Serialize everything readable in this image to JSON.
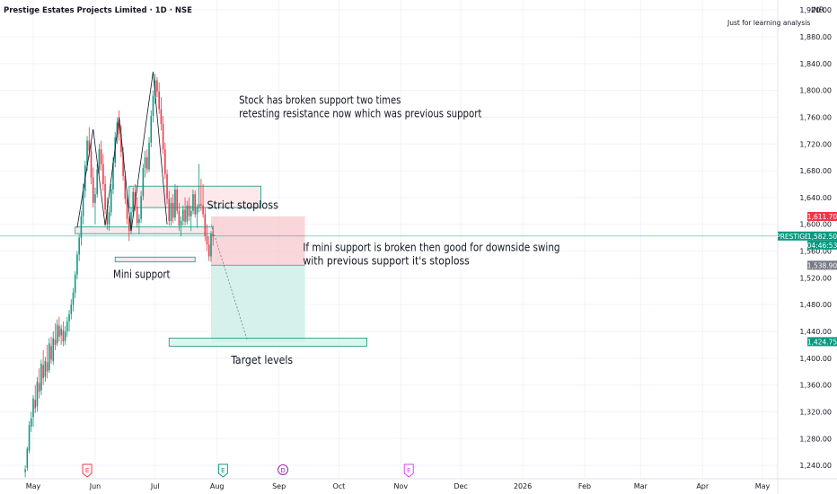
{
  "header": {
    "title": "Prestige Estates Projects Limited · 1D · NSE",
    "currency": "INR",
    "note": "Just for learning analysis"
  },
  "colors": {
    "up": "#089981",
    "down": "#f23645",
    "grid": "#f0f3fa",
    "axis_text": "#131722",
    "zone_red": "#f7c8cc",
    "zone_green": "#cfeee7"
  },
  "chart_data": {
    "type": "candlestick",
    "symbol": "PRESTIGE",
    "timeframe": "1D",
    "ylim": [
      1220,
      1935
    ],
    "y_ticks": [
      1240,
      1280,
      1320,
      1360,
      1400,
      1440,
      1480,
      1520,
      1560,
      1600,
      1640,
      1680,
      1720,
      1760,
      1800,
      1840,
      1880,
      1920
    ],
    "y_tick_labels": [
      "1,240.00",
      "1,280.00",
      "1,320.00",
      "1,360.00",
      "1,400.00",
      "1,440.00",
      "1,480.00",
      "1,520.00",
      "1,560.00",
      "1,600.00",
      "1,640.00",
      "1,680.00",
      "1,720.00",
      "1,760.00",
      "1,800.00",
      "1,840.00",
      "1,880.00",
      "1,920.00"
    ],
    "x_ticks": [
      {
        "label": "May",
        "day": 0
      },
      {
        "label": "Jun",
        "day": 31
      },
      {
        "label": "Jul",
        "day": 61
      },
      {
        "label": "Aug",
        "day": 92
      },
      {
        "label": "Sep",
        "day": 123
      },
      {
        "label": "Oct",
        "day": 153
      },
      {
        "label": "Nov",
        "day": 184
      },
      {
        "label": "Dec",
        "day": 214
      },
      {
        "label": "2026",
        "day": 245
      },
      {
        "label": "Feb",
        "day": 276
      },
      {
        "label": "Mar",
        "day": 304
      },
      {
        "label": "Apr",
        "day": 335
      },
      {
        "label": "May",
        "day": 365
      }
    ],
    "price_labels": [
      {
        "text": "1,611.70",
        "value": 1611.7,
        "color": "#f23645"
      },
      {
        "text": "PRESTIGE",
        "value": 1582.5,
        "color": "#089981"
      },
      {
        "text": "1,582.50",
        "value": 1582.5,
        "color": "#089981"
      },
      {
        "text": "04:46:53",
        "value": 1570,
        "color": "#089981"
      },
      {
        "text": "1,538.90",
        "value": 1538.9,
        "color": "#787b86"
      },
      {
        "text": "1,424.75",
        "value": 1424.75,
        "color": "#089981"
      }
    ],
    "events": [
      {
        "type": "earnings",
        "symbol": "E",
        "day": 27
      },
      {
        "type": "earnings",
        "symbol": "E",
        "day": 95
      },
      {
        "type": "dividend",
        "symbol": "D",
        "day": 125
      },
      {
        "type": "earnings",
        "symbol": "E",
        "day": 188
      }
    ],
    "candles": [
      {
        "day": -4,
        "o": 1230,
        "h": 1240,
        "l": 1222,
        "c": 1234
      },
      {
        "day": -3,
        "o": 1236,
        "h": 1268,
        "l": 1232,
        "c": 1265
      },
      {
        "day": -2,
        "o": 1262,
        "h": 1306,
        "l": 1258,
        "c": 1300
      },
      {
        "day": -1,
        "o": 1298,
        "h": 1320,
        "l": 1290,
        "c": 1310
      },
      {
        "day": 0,
        "o": 1312,
        "h": 1345,
        "l": 1298,
        "c": 1340
      },
      {
        "day": 1,
        "o": 1338,
        "h": 1360,
        "l": 1318,
        "c": 1325
      },
      {
        "day": 2,
        "o": 1328,
        "h": 1372,
        "l": 1320,
        "c": 1365
      },
      {
        "day": 3,
        "o": 1363,
        "h": 1385,
        "l": 1340,
        "c": 1350
      },
      {
        "day": 4,
        "o": 1352,
        "h": 1398,
        "l": 1345,
        "c": 1392
      },
      {
        "day": 5,
        "o": 1390,
        "h": 1412,
        "l": 1360,
        "c": 1370
      },
      {
        "day": 6,
        "o": 1372,
        "h": 1402,
        "l": 1365,
        "c": 1396
      },
      {
        "day": 7,
        "o": 1394,
        "h": 1420,
        "l": 1370,
        "c": 1380
      },
      {
        "day": 8,
        "o": 1382,
        "h": 1430,
        "l": 1378,
        "c": 1422
      },
      {
        "day": 9,
        "o": 1418,
        "h": 1432,
        "l": 1392,
        "c": 1398
      },
      {
        "day": 10,
        "o": 1396,
        "h": 1440,
        "l": 1390,
        "c": 1430
      },
      {
        "day": 11,
        "o": 1428,
        "h": 1452,
        "l": 1412,
        "c": 1420
      },
      {
        "day": 12,
        "o": 1422,
        "h": 1458,
        "l": 1418,
        "c": 1450
      },
      {
        "day": 13,
        "o": 1448,
        "h": 1462,
        "l": 1425,
        "c": 1432
      },
      {
        "day": 14,
        "o": 1434,
        "h": 1450,
        "l": 1420,
        "c": 1444
      },
      {
        "day": 15,
        "o": 1442,
        "h": 1455,
        "l": 1418,
        "c": 1425
      },
      {
        "day": 16,
        "o": 1426,
        "h": 1448,
        "l": 1420,
        "c": 1440
      },
      {
        "day": 17,
        "o": 1440,
        "h": 1462,
        "l": 1432,
        "c": 1455
      },
      {
        "day": 18,
        "o": 1455,
        "h": 1472,
        "l": 1440,
        "c": 1466
      },
      {
        "day": 19,
        "o": 1466,
        "h": 1488,
        "l": 1458,
        "c": 1480
      },
      {
        "day": 20,
        "o": 1480,
        "h": 1505,
        "l": 1470,
        "c": 1498
      },
      {
        "day": 21,
        "o": 1498,
        "h": 1530,
        "l": 1490,
        "c": 1525
      },
      {
        "day": 22,
        "o": 1525,
        "h": 1560,
        "l": 1518,
        "c": 1555
      },
      {
        "day": 23,
        "o": 1555,
        "h": 1585,
        "l": 1545,
        "c": 1580
      },
      {
        "day": 24,
        "o": 1580,
        "h": 1620,
        "l": 1568,
        "c": 1612
      },
      {
        "day": 25,
        "o": 1612,
        "h": 1660,
        "l": 1600,
        "c": 1650
      },
      {
        "day": 26,
        "o": 1650,
        "h": 1695,
        "l": 1640,
        "c": 1688
      },
      {
        "day": 27,
        "o": 1688,
        "h": 1732,
        "l": 1680,
        "c": 1725
      },
      {
        "day": 28,
        "o": 1725,
        "h": 1745,
        "l": 1700,
        "c": 1710
      },
      {
        "day": 29,
        "o": 1710,
        "h": 1722,
        "l": 1660,
        "c": 1670
      },
      {
        "day": 30,
        "o": 1670,
        "h": 1685,
        "l": 1625,
        "c": 1632
      },
      {
        "day": 31,
        "o": 1632,
        "h": 1655,
        "l": 1600,
        "c": 1645
      },
      {
        "day": 32,
        "o": 1645,
        "h": 1690,
        "l": 1640,
        "c": 1682
      },
      {
        "day": 33,
        "o": 1682,
        "h": 1720,
        "l": 1675,
        "c": 1712
      },
      {
        "day": 34,
        "o": 1712,
        "h": 1725,
        "l": 1680,
        "c": 1690
      },
      {
        "day": 35,
        "o": 1690,
        "h": 1705,
        "l": 1650,
        "c": 1660
      },
      {
        "day": 36,
        "o": 1660,
        "h": 1672,
        "l": 1615,
        "c": 1622
      },
      {
        "day": 37,
        "o": 1622,
        "h": 1640,
        "l": 1592,
        "c": 1600
      },
      {
        "day": 38,
        "o": 1600,
        "h": 1628,
        "l": 1590,
        "c": 1618
      },
      {
        "day": 39,
        "o": 1618,
        "h": 1660,
        "l": 1612,
        "c": 1652
      },
      {
        "day": 40,
        "o": 1652,
        "h": 1700,
        "l": 1645,
        "c": 1692
      },
      {
        "day": 41,
        "o": 1692,
        "h": 1738,
        "l": 1685,
        "c": 1730
      },
      {
        "day": 42,
        "o": 1730,
        "h": 1760,
        "l": 1720,
        "c": 1752
      },
      {
        "day": 43,
        "o": 1752,
        "h": 1770,
        "l": 1725,
        "c": 1735
      },
      {
        "day": 44,
        "o": 1735,
        "h": 1748,
        "l": 1700,
        "c": 1708
      },
      {
        "day": 45,
        "o": 1708,
        "h": 1715,
        "l": 1665,
        "c": 1672
      },
      {
        "day": 46,
        "o": 1672,
        "h": 1680,
        "l": 1630,
        "c": 1638
      },
      {
        "day": 47,
        "o": 1638,
        "h": 1645,
        "l": 1600,
        "c": 1608
      },
      {
        "day": 48,
        "o": 1608,
        "h": 1612,
        "l": 1575,
        "c": 1590
      },
      {
        "day": 49,
        "o": 1590,
        "h": 1625,
        "l": 1585,
        "c": 1618
      },
      {
        "day": 50,
        "o": 1618,
        "h": 1655,
        "l": 1610,
        "c": 1648
      },
      {
        "day": 51,
        "o": 1648,
        "h": 1660,
        "l": 1620,
        "c": 1626
      },
      {
        "day": 52,
        "o": 1626,
        "h": 1640,
        "l": 1595,
        "c": 1602
      },
      {
        "day": 53,
        "o": 1602,
        "h": 1615,
        "l": 1585,
        "c": 1608
      },
      {
        "day": 54,
        "o": 1608,
        "h": 1650,
        "l": 1602,
        "c": 1642
      },
      {
        "day": 55,
        "o": 1642,
        "h": 1690,
        "l": 1636,
        "c": 1684
      },
      {
        "day": 56,
        "o": 1684,
        "h": 1710,
        "l": 1670,
        "c": 1700
      },
      {
        "day": 57,
        "o": 1700,
        "h": 1712,
        "l": 1676,
        "c": 1682
      },
      {
        "day": 58,
        "o": 1682,
        "h": 1730,
        "l": 1678,
        "c": 1722
      },
      {
        "day": 59,
        "o": 1722,
        "h": 1770,
        "l": 1715,
        "c": 1762
      },
      {
        "day": 60,
        "o": 1762,
        "h": 1800,
        "l": 1752,
        "c": 1792
      },
      {
        "day": 61,
        "o": 1792,
        "h": 1825,
        "l": 1780,
        "c": 1815
      },
      {
        "day": 62,
        "o": 1815,
        "h": 1820,
        "l": 1790,
        "c": 1798
      },
      {
        "day": 63,
        "o": 1798,
        "h": 1812,
        "l": 1765,
        "c": 1772
      },
      {
        "day": 64,
        "o": 1772,
        "h": 1790,
        "l": 1740,
        "c": 1750
      },
      {
        "day": 65,
        "o": 1750,
        "h": 1762,
        "l": 1705,
        "c": 1712
      },
      {
        "day": 66,
        "o": 1712,
        "h": 1722,
        "l": 1668,
        "c": 1675
      },
      {
        "day": 67,
        "o": 1675,
        "h": 1682,
        "l": 1630,
        "c": 1638
      },
      {
        "day": 68,
        "o": 1638,
        "h": 1650,
        "l": 1598,
        "c": 1605
      },
      {
        "day": 69,
        "o": 1605,
        "h": 1640,
        "l": 1598,
        "c": 1632
      },
      {
        "day": 70,
        "o": 1632,
        "h": 1645,
        "l": 1602,
        "c": 1610
      },
      {
        "day": 71,
        "o": 1610,
        "h": 1660,
        "l": 1605,
        "c": 1652
      },
      {
        "day": 72,
        "o": 1652,
        "h": 1658,
        "l": 1615,
        "c": 1620
      },
      {
        "day": 73,
        "o": 1620,
        "h": 1632,
        "l": 1590,
        "c": 1598
      },
      {
        "day": 74,
        "o": 1598,
        "h": 1612,
        "l": 1582,
        "c": 1605
      },
      {
        "day": 75,
        "o": 1605,
        "h": 1628,
        "l": 1598,
        "c": 1622
      },
      {
        "day": 76,
        "o": 1622,
        "h": 1640,
        "l": 1598,
        "c": 1604
      },
      {
        "day": 77,
        "o": 1604,
        "h": 1635,
        "l": 1600,
        "c": 1628
      },
      {
        "day": 78,
        "o": 1628,
        "h": 1640,
        "l": 1605,
        "c": 1612
      },
      {
        "day": 79,
        "o": 1612,
        "h": 1628,
        "l": 1590,
        "c": 1620
      },
      {
        "day": 80,
        "o": 1620,
        "h": 1652,
        "l": 1615,
        "c": 1645
      },
      {
        "day": 81,
        "o": 1645,
        "h": 1650,
        "l": 1610,
        "c": 1615
      },
      {
        "day": 82,
        "o": 1615,
        "h": 1630,
        "l": 1595,
        "c": 1625
      },
      {
        "day": 83,
        "o": 1625,
        "h": 1690,
        "l": 1618,
        "c": 1630
      },
      {
        "day": 84,
        "o": 1630,
        "h": 1668,
        "l": 1620,
        "c": 1628
      },
      {
        "day": 85,
        "o": 1628,
        "h": 1660,
        "l": 1610,
        "c": 1615
      },
      {
        "day": 86,
        "o": 1615,
        "h": 1625,
        "l": 1575,
        "c": 1582
      },
      {
        "day": 87,
        "o": 1582,
        "h": 1600,
        "l": 1560,
        "c": 1570
      },
      {
        "day": 88,
        "o": 1570,
        "h": 1582,
        "l": 1545,
        "c": 1552
      },
      {
        "day": 89,
        "o": 1552,
        "h": 1590,
        "l": 1544,
        "c": 1585
      },
      {
        "day": 90,
        "o": 1585,
        "h": 1598,
        "l": 1568,
        "c": 1582
      }
    ],
    "zones": [
      {
        "name": "resistance-zone",
        "from_day": 48,
        "to_day": 114,
        "low": 1625,
        "high": 1657
      },
      {
        "name": "support-zone",
        "from_day": 21,
        "to_day": 90,
        "low": 1586,
        "high": 1596
      },
      {
        "name": "mini-support-zone",
        "from_day": 41,
        "to_day": 81,
        "low": 1544,
        "high": 1551
      },
      {
        "name": "target-zone",
        "from_day": 68,
        "to_day": 167,
        "low": 1418,
        "high": 1430
      }
    ],
    "position": {
      "from_day": 89,
      "to_day": 136,
      "entry": 1538.9,
      "stop": 1611.7,
      "target": 1424.75
    },
    "horizontal_line": 1582.5,
    "drawings": [
      {
        "name": "zigzag-pattern",
        "points": [
          [
            22,
            1595
          ],
          [
            30,
            1742
          ],
          [
            36,
            1598
          ],
          [
            43,
            1760
          ],
          [
            49,
            1590
          ],
          [
            60,
            1828
          ],
          [
            67,
            1600
          ]
        ]
      },
      {
        "name": "projection-dotted",
        "points": [
          [
            89,
            1600
          ],
          [
            107,
            1428
          ]
        ]
      }
    ],
    "annotations": [
      {
        "text": "Stock has broken support two times",
        "day": 103,
        "value": 1780
      },
      {
        "text": "retesting resistance now which was previous support",
        "day": 103,
        "value": 1760
      },
      {
        "text": "Strict stoploss",
        "day": 87,
        "value": 1623
      },
      {
        "text": "If mini support is broken then good for downside swing",
        "day": 135,
        "value": 1560
      },
      {
        "text": "with previous support it's stoploss",
        "day": 135,
        "value": 1540
      },
      {
        "text": "Mini support",
        "day": 40,
        "value": 1520
      },
      {
        "text": "Target levels",
        "day": 99,
        "value": 1392
      }
    ]
  }
}
